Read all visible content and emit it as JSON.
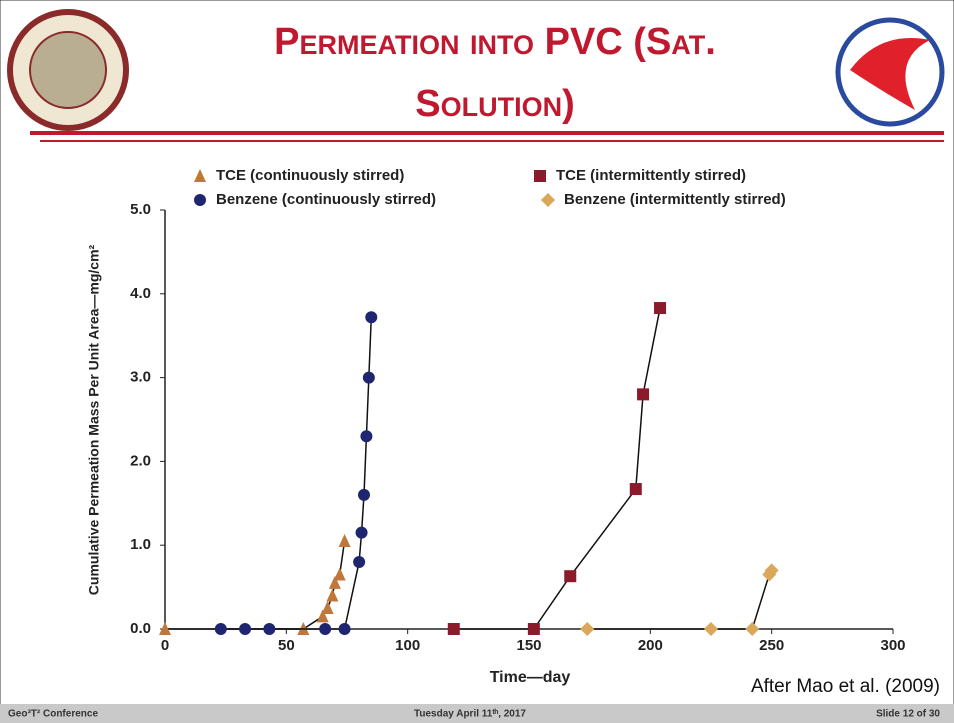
{
  "slide": {
    "title": "Permeation into PVC (Sat. Solution)",
    "footer_left": "Geo³T² Conference",
    "footer_center": "Tuesday April 11ᵗʰ, 2017",
    "footer_right": "Slide 12 of 30"
  },
  "chart_data": {
    "type": "line",
    "y_label": "Cumulative Permeation Mass Per Unit Area—mg/cm²",
    "x_label": "Time—day",
    "annotation": "After Mao et al.  (2009)",
    "xlim": [
      0,
      300
    ],
    "xticks": [
      0,
      50,
      100,
      150,
      200,
      250,
      300
    ],
    "ylim": [
      0,
      5
    ],
    "yticks": [
      {
        "value": 0,
        "label": "0.0"
      },
      {
        "value": 1,
        "label": "1.0"
      },
      {
        "value": 2,
        "label": "2.0"
      },
      {
        "value": 3,
        "label": "3.0"
      },
      {
        "value": 4,
        "label": "4.0"
      },
      {
        "value": 5,
        "label": "5.0"
      }
    ],
    "series": [
      {
        "name": "TCE (continuously stirred)",
        "color": "#c0773a",
        "marker": "triangle",
        "x": [
          0,
          57,
          65,
          67,
          69,
          70,
          72,
          74
        ],
        "values": [
          0,
          0,
          0.15,
          0.25,
          0.4,
          0.55,
          0.65,
          1.05
        ]
      },
      {
        "name": "TCE (intermittently stirred)",
        "color": "#8b1a2b",
        "marker": "square",
        "x": [
          119,
          152,
          167,
          194,
          197,
          204
        ],
        "values": [
          0,
          0,
          0.63,
          1.67,
          2.8,
          3.83
        ]
      },
      {
        "name": "Benzene (continuously stirred)",
        "color": "#1f2670",
        "marker": "circle",
        "x": [
          23,
          33,
          43,
          66,
          74,
          80,
          81,
          82,
          83,
          84,
          85
        ],
        "values": [
          0,
          0,
          0,
          0,
          0,
          0.8,
          1.15,
          1.6,
          2.3,
          3.0,
          3.72
        ]
      },
      {
        "name": "Benzene (intermittently stirred)",
        "color": "#d9a85a",
        "marker": "diamond",
        "x": [
          174,
          225,
          242,
          249,
          250
        ],
        "values": [
          0,
          0,
          0,
          0.65,
          0.7
        ]
      }
    ]
  }
}
